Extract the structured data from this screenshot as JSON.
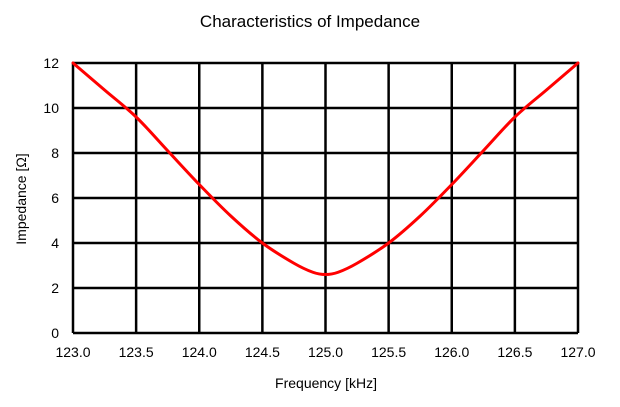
{
  "chart_data": {
    "type": "line",
    "title": "Characteristics of Impedance",
    "xlabel": "Frequency [kHz]",
    "ylabel": "Impedance [Ω]",
    "xlim": [
      123.0,
      127.0
    ],
    "ylim": [
      0,
      12
    ],
    "x_ticks": [
      "123.0",
      "123.5",
      "124.0",
      "124.5",
      "125.0",
      "125.5",
      "126.0",
      "126.5",
      "127.0"
    ],
    "y_ticks": [
      "0",
      "2",
      "4",
      "6",
      "8",
      "10",
      "12"
    ],
    "grid": true,
    "series": [
      {
        "color": "#ff0000",
        "x": [
          123.0,
          123.25,
          123.5,
          123.75,
          124.0,
          124.25,
          124.5,
          124.75,
          124.9,
          125.0,
          125.1,
          125.25,
          125.5,
          125.75,
          126.0,
          126.25,
          126.5,
          126.75,
          127.0
        ],
        "y": [
          12.0,
          10.8,
          9.6,
          8.1,
          6.6,
          5.2,
          4.0,
          3.1,
          2.7,
          2.6,
          2.7,
          3.1,
          4.0,
          5.2,
          6.6,
          8.1,
          9.6,
          10.8,
          12.0
        ]
      }
    ]
  }
}
